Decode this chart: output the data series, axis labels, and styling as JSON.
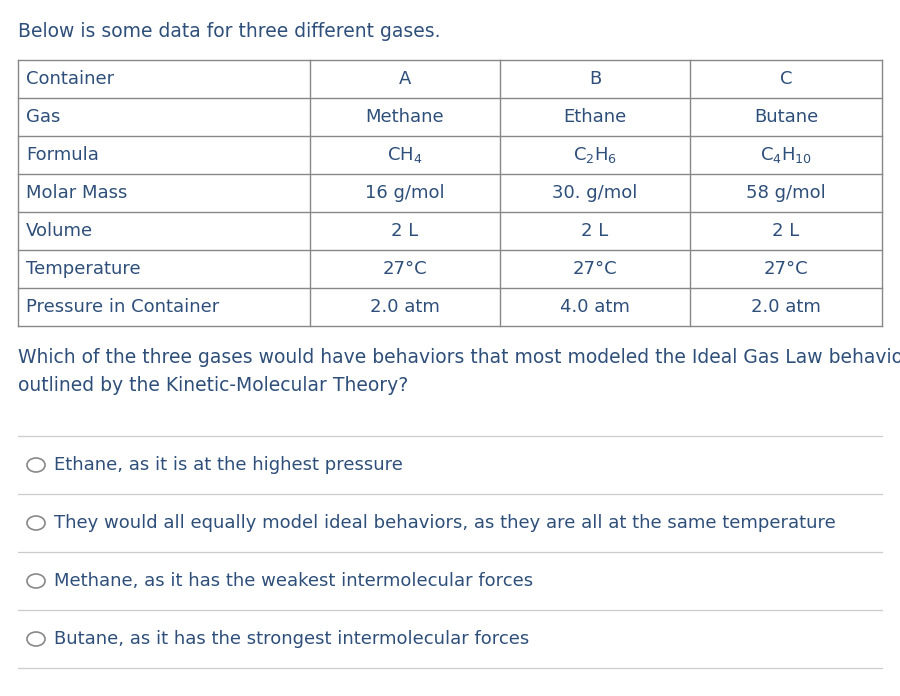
{
  "title": "Below is some data for three different gases.",
  "row_labels": [
    "Container",
    "Gas",
    "Formula",
    "Molar Mass",
    "Volume",
    "Temperature",
    "Pressure in Container"
  ],
  "col_A": [
    "A",
    "Methane",
    "CH$_4$",
    "16 g/mol",
    "2 L",
    "27°C",
    "2.0 atm"
  ],
  "col_B": [
    "B",
    "Ethane",
    "C$_2$H$_6$",
    "30. g/mol",
    "2 L",
    "27°C",
    "4.0 atm"
  ],
  "col_C": [
    "C",
    "Butane",
    "C$_4$H$_{10}$",
    "58 g/mol",
    "2 L",
    "27°C",
    "2.0 atm"
  ],
  "question_line1": "Which of the three gases would have behaviors that most modeled the Ideal Gas Law behaviors, as",
  "question_line2": "outlined by the Kinetic-Molecular Theory?",
  "choices": [
    "Ethane, as it is at the highest pressure",
    "They would all equally model ideal behaviors, as they are all at the same temperature",
    "Methane, as it has the weakest intermolecular forces",
    "Butane, as it has the strongest intermolecular forces"
  ],
  "dark_blue": "#2e4f7a",
  "black": "#222222",
  "bg": "#ffffff",
  "border_color": "#888888",
  "divider_color": "#cccccc",
  "title_fs": 13.5,
  "table_fs": 13.0,
  "question_fs": 13.5,
  "choice_fs": 13.0
}
